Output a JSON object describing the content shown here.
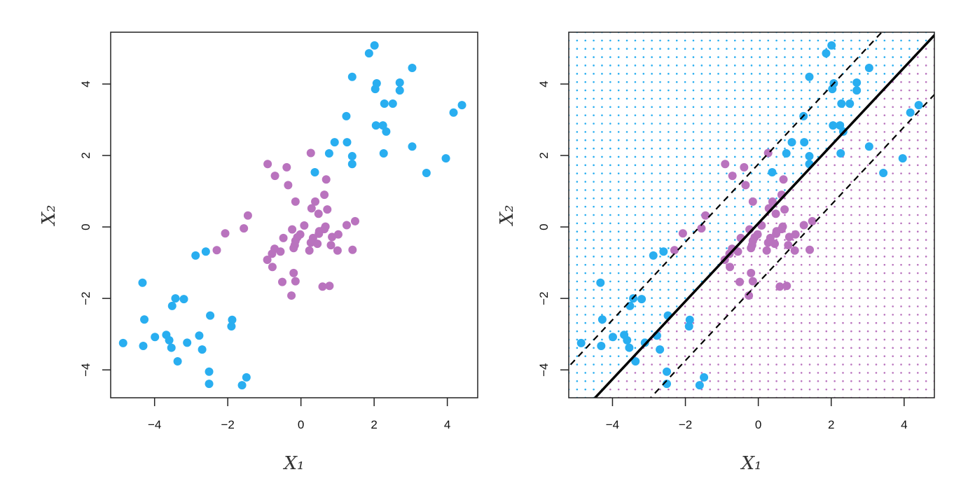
{
  "chart_data": [
    {
      "type": "scatter",
      "panel": "left",
      "xlabel": "X₁",
      "ylabel": "X₂",
      "xlim": [
        -5.2,
        4.83
      ],
      "ylim": [
        -4.78,
        5.45
      ],
      "x_ticks": [
        -4,
        -2,
        0,
        2,
        4
      ],
      "y_ticks": [
        -4,
        -2,
        0,
        2,
        4
      ],
      "x_tick_labels": [
        "−4",
        "−2",
        "0",
        "2",
        "4"
      ],
      "y_tick_labels": [
        "−4",
        "−2",
        "0",
        "2",
        "4"
      ],
      "grid": false,
      "series_ref": "points"
    },
    {
      "type": "scatter",
      "panel": "right",
      "xlabel": "X₁",
      "ylabel": "X₂",
      "xlim": [
        -5.2,
        4.83
      ],
      "ylim": [
        -4.78,
        5.45
      ],
      "x_ticks": [
        -4,
        -2,
        0,
        2,
        4
      ],
      "y_ticks": [
        -4,
        -2,
        0,
        2,
        4
      ],
      "x_tick_labels": [
        "−4",
        "−2",
        "0",
        "2",
        "4"
      ],
      "y_tick_labels": [
        "−4",
        "−2",
        "0",
        "2",
        "4"
      ],
      "grid": false,
      "series_ref": "points",
      "decision_boundary": {
        "slope": 1.09,
        "intercept": 0.1,
        "style": "solid"
      },
      "margins": [
        {
          "slope": 1.09,
          "intercept": 1.76,
          "style": "dashed"
        },
        {
          "slope": 1.09,
          "intercept": -1.56,
          "style": "dashed"
        }
      ],
      "background_grid": {
        "above_color": "#29aef0",
        "below_color": "#b973be",
        "shown_as": "dots"
      }
    }
  ],
  "colors": {
    "blue": "#29aef0",
    "purple": "#b973be"
  },
  "points": {
    "blue": [
      [
        2.01,
        5.08
      ],
      [
        1.86,
        4.86
      ],
      [
        3.04,
        4.45
      ],
      [
        1.4,
        4.2
      ],
      [
        2.07,
        4.02
      ],
      [
        2.03,
        3.86
      ],
      [
        2.7,
        4.04
      ],
      [
        2.7,
        3.82
      ],
      [
        2.28,
        3.45
      ],
      [
        2.51,
        3.45
      ],
      [
        4.4,
        3.41
      ],
      [
        4.17,
        3.2
      ],
      [
        1.24,
        3.1
      ],
      [
        2.05,
        2.84
      ],
      [
        2.24,
        2.84
      ],
      [
        2.33,
        2.67
      ],
      [
        0.92,
        2.37
      ],
      [
        1.26,
        2.37
      ],
      [
        3.04,
        2.25
      ],
      [
        0.77,
        2.06
      ],
      [
        2.26,
        2.06
      ],
      [
        1.4,
        1.98
      ],
      [
        1.4,
        1.76
      ],
      [
        3.96,
        1.92
      ],
      [
        3.43,
        1.51
      ],
      [
        0.38,
        1.53
      ],
      [
        -2.88,
        -0.8
      ],
      [
        -2.6,
        -0.69
      ],
      [
        -4.33,
        -1.56
      ],
      [
        -3.43,
        -2.0
      ],
      [
        -3.2,
        -2.02
      ],
      [
        -3.52,
        -2.21
      ],
      [
        -4.28,
        -2.59
      ],
      [
        -2.48,
        -2.48
      ],
      [
        -1.88,
        -2.6
      ],
      [
        -1.9,
        -2.78
      ],
      [
        -3.99,
        -3.08
      ],
      [
        -3.68,
        -3.02
      ],
      [
        -3.6,
        -3.17
      ],
      [
        -2.78,
        -3.04
      ],
      [
        -4.86,
        -3.25
      ],
      [
        -4.31,
        -3.33
      ],
      [
        -3.11,
        -3.24
      ],
      [
        -3.54,
        -3.38
      ],
      [
        -2.7,
        -3.43
      ],
      [
        -3.37,
        -3.76
      ],
      [
        -2.51,
        -4.05
      ],
      [
        -2.51,
        -4.39
      ],
      [
        -1.49,
        -4.21
      ],
      [
        -1.61,
        -4.43
      ]
    ],
    "purple": [
      [
        0.27,
        2.07
      ],
      [
        -0.91,
        1.76
      ],
      [
        -0.39,
        1.67
      ],
      [
        -0.71,
        1.43
      ],
      [
        0.69,
        1.33
      ],
      [
        -0.35,
        1.17
      ],
      [
        0.64,
        0.9
      ],
      [
        -0.15,
        0.71
      ],
      [
        0.39,
        0.71
      ],
      [
        0.29,
        0.52
      ],
      [
        0.72,
        0.49
      ],
      [
        0.48,
        0.37
      ],
      [
        -1.45,
        0.32
      ],
      [
        -1.56,
        -0.04
      ],
      [
        -2.07,
        -0.18
      ],
      [
        -2.3,
        -0.65
      ],
      [
        0.09,
        0.04
      ],
      [
        -0.24,
        -0.07
      ],
      [
        1.25,
        0.05
      ],
      [
        1.48,
        0.16
      ],
      [
        0.67,
        0.01
      ],
      [
        0.64,
        -0.06
      ],
      [
        0.5,
        -0.12
      ],
      [
        0.49,
        -0.19
      ],
      [
        -0.02,
        -0.21
      ],
      [
        -0.1,
        -0.29
      ],
      [
        -0.48,
        -0.31
      ],
      [
        1.02,
        -0.21
      ],
      [
        0.85,
        -0.28
      ],
      [
        0.33,
        -0.31
      ],
      [
        -0.15,
        -0.39
      ],
      [
        0.27,
        -0.44
      ],
      [
        0.45,
        -0.47
      ],
      [
        -0.17,
        -0.51
      ],
      [
        0.82,
        -0.51
      ],
      [
        -0.2,
        -0.59
      ],
      [
        -0.72,
        -0.61
      ],
      [
        -0.56,
        -0.69
      ],
      [
        0.23,
        -0.66
      ],
      [
        1.0,
        -0.66
      ],
      [
        1.41,
        -0.64
      ],
      [
        -0.79,
        -0.75
      ],
      [
        -0.92,
        -0.92
      ],
      [
        -0.78,
        -1.12
      ],
      [
        -0.2,
        -1.29
      ],
      [
        -0.51,
        -1.54
      ],
      [
        -0.15,
        -1.52
      ],
      [
        0.59,
        -1.67
      ],
      [
        0.78,
        -1.65
      ],
      [
        -0.26,
        -1.92
      ]
    ]
  }
}
